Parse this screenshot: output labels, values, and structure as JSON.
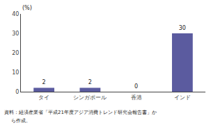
{
  "chart_data": {
    "type": "bar",
    "categories": [
      "タイ",
      "シンガポール",
      "香港",
      "インド"
    ],
    "values": [
      2,
      2,
      0,
      30
    ],
    "color": "#5b5b9f",
    "ylabel": "(%)",
    "ylim": [
      0,
      40
    ],
    "yticks": [
      0,
      10,
      20,
      30,
      40
    ],
    "grid": false,
    "data_labels": true,
    "annotations": [
      "資料：経済産業省「平成21年度アジア消費トレンド研究会報告書」か",
      "ら作成。"
    ]
  }
}
